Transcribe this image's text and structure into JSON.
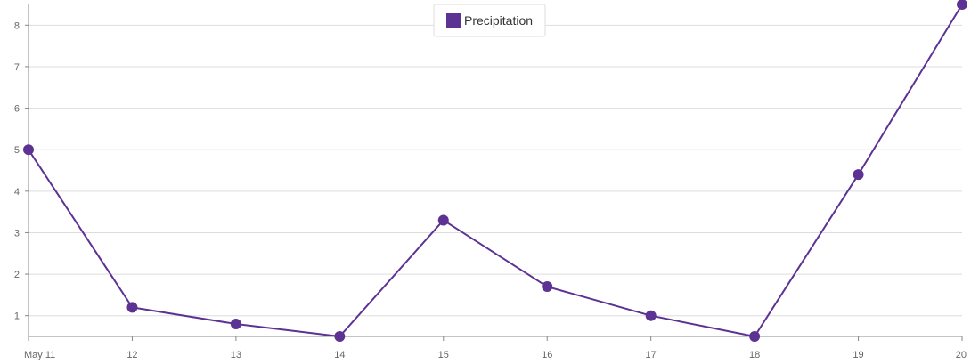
{
  "chart_data": {
    "type": "line",
    "title": "",
    "xlabel": "",
    "ylabel": "",
    "x": [
      "May 11",
      "12",
      "13",
      "14",
      "15",
      "16",
      "17",
      "18",
      "19",
      "20"
    ],
    "series": [
      {
        "name": "Precipitation",
        "color": "#5c3292",
        "values": [
          5.0,
          1.2,
          0.8,
          0.5,
          3.3,
          1.7,
          1.0,
          0.5,
          4.4,
          8.5
        ]
      }
    ],
    "ylim": [
      0.5,
      8.5
    ],
    "yticks": [
      1,
      2,
      3,
      4,
      5,
      6,
      7,
      8
    ],
    "grid": true,
    "legend": {
      "placement": "top-center",
      "entries": [
        "Precipitation"
      ]
    }
  }
}
